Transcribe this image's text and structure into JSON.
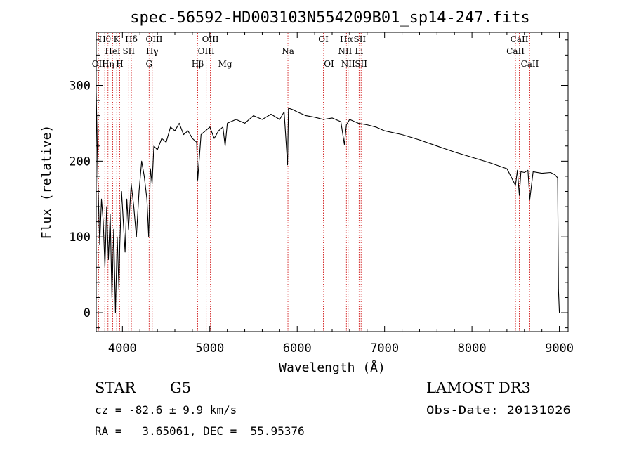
{
  "chart_data": {
    "type": "line",
    "title": "spec-56592-HD003103N554209B01_sp14-247.fits",
    "xlabel": "Wavelength (Å)",
    "ylabel": "Flux (relative)",
    "xlim": [
      3700,
      9100
    ],
    "ylim": [
      -25,
      370
    ],
    "xticks": [
      4000,
      5000,
      6000,
      7000,
      8000,
      9000
    ],
    "yticks": [
      0,
      100,
      200,
      300
    ],
    "series": [
      {
        "name": "flux",
        "x": [
          3700,
          3720,
          3740,
          3760,
          3780,
          3800,
          3820,
          3840,
          3860,
          3880,
          3900,
          3920,
          3940,
          3960,
          3970,
          3990,
          4010,
          4030,
          4050,
          4070,
          4100,
          4130,
          4160,
          4190,
          4220,
          4250,
          4280,
          4300,
          4320,
          4340,
          4360,
          4400,
          4450,
          4500,
          4550,
          4600,
          4650,
          4700,
          4750,
          4800,
          4850,
          4861,
          4900,
          4950,
          5000,
          5050,
          5100,
          5150,
          5175,
          5200,
          5300,
          5400,
          5500,
          5600,
          5700,
          5800,
          5850,
          5890,
          5900,
          5950,
          6000,
          6100,
          6200,
          6300,
          6400,
          6500,
          6540,
          6563,
          6600,
          6700,
          6800,
          6900,
          7000,
          7200,
          7400,
          7600,
          7800,
          8000,
          8200,
          8400,
          8498,
          8520,
          8542,
          8560,
          8600,
          8640,
          8662,
          8700,
          8800,
          8900,
          8950,
          8980,
          8990,
          9000
        ],
        "values": [
          290,
          170,
          90,
          150,
          120,
          60,
          140,
          70,
          130,
          20,
          110,
          0,
          100,
          30,
          90,
          160,
          120,
          80,
          150,
          110,
          170,
          140,
          100,
          160,
          200,
          180,
          150,
          100,
          190,
          170,
          220,
          215,
          230,
          225,
          245,
          240,
          250,
          235,
          240,
          230,
          225,
          175,
          235,
          240,
          245,
          230,
          240,
          245,
          220,
          250,
          255,
          250,
          260,
          255,
          262,
          255,
          265,
          195,
          270,
          268,
          265,
          260,
          258,
          255,
          257,
          252,
          222,
          248,
          255,
          250,
          248,
          245,
          240,
          235,
          228,
          220,
          212,
          205,
          198,
          190,
          168,
          188,
          155,
          186,
          185,
          188,
          150,
          186,
          184,
          185,
          182,
          178,
          30,
          0
        ]
      }
    ],
    "line_markers": [
      {
        "name": "OII",
        "wave": 3727,
        "row": 2
      },
      {
        "name": "Hθ",
        "wave": 3798,
        "row": 0
      },
      {
        "name": "Hη",
        "wave": 3835,
        "row": 2
      },
      {
        "name": "HeI",
        "wave": 3889,
        "row": 1
      },
      {
        "name": "K",
        "wave": 3934,
        "row": 0
      },
      {
        "name": "H",
        "wave": 3969,
        "row": 2
      },
      {
        "name": "SII",
        "wave": 4072,
        "row": 1
      },
      {
        "name": "Hδ",
        "wave": 4102,
        "row": 0
      },
      {
        "name": "G",
        "wave": 4305,
        "row": 2
      },
      {
        "name": "Hγ",
        "wave": 4341,
        "row": 1
      },
      {
        "name": "OIII",
        "wave": 4363,
        "row": 0
      },
      {
        "name": "Hβ",
        "wave": 4861,
        "row": 2
      },
      {
        "name": "OIII",
        "wave": 4959,
        "row": 1
      },
      {
        "name": "OIII",
        "wave": 5007,
        "row": 0
      },
      {
        "name": "Mg",
        "wave": 5175,
        "row": 2
      },
      {
        "name": "Na",
        "wave": 5894,
        "row": 1
      },
      {
        "name": "OI",
        "wave": 6300,
        "row": 0
      },
      {
        "name": "OI",
        "wave": 6364,
        "row": 2
      },
      {
        "name": "NII",
        "wave": 6548,
        "row": 1
      },
      {
        "name": "Hα",
        "wave": 6563,
        "row": 0
      },
      {
        "name": "NII",
        "wave": 6583,
        "row": 2
      },
      {
        "name": "Li",
        "wave": 6708,
        "row": 1
      },
      {
        "name": "SII",
        "wave": 6716,
        "row": 0
      },
      {
        "name": "SII",
        "wave": 6731,
        "row": 2
      },
      {
        "name": "CaII",
        "wave": 8498,
        "row": 1
      },
      {
        "name": "CaII",
        "wave": 8542,
        "row": 0
      },
      {
        "name": "CaII",
        "wave": 8662,
        "row": 2
      }
    ]
  },
  "info": {
    "class": "STAR",
    "subclass": "G5",
    "survey": "LAMOST DR3",
    "cz": "cz = -82.6 ± 9.9 km/s",
    "obs_date": "Obs-Date: 20131026",
    "coords": "RA =   3.65061, DEC =  55.95376"
  },
  "colors": {
    "axis": "#000000",
    "spectrum": "#000000",
    "marker": "#cc0000",
    "background": "#ffffff"
  }
}
